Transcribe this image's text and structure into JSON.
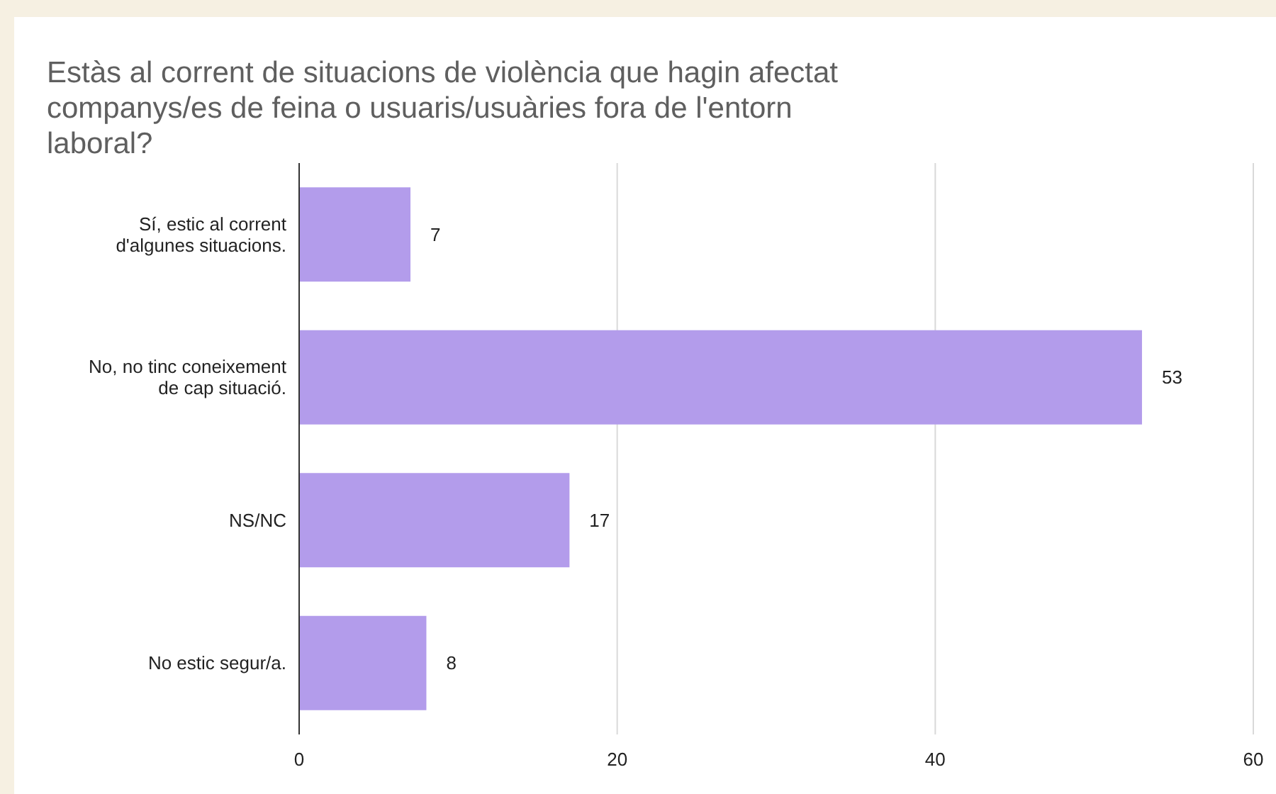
{
  "chart_data": {
    "type": "bar",
    "orientation": "horizontal",
    "title": "Estàs al corrent de situacions de violència que hagin afectat companys/es de feina o usuaris/usuàries fora de l'entorn laboral?",
    "categories": [
      "Sí, estic al corrent d'algunes situacions.",
      "No, no tinc coneixement de cap situació.",
      "NS/NC",
      "No estic segur/a."
    ],
    "values": [
      7,
      53,
      17,
      8
    ],
    "color": "#b39ceb",
    "data_labels": true,
    "xlim": [
      0,
      60
    ],
    "xticks": [
      0,
      20,
      40,
      60
    ],
    "grid": "x"
  }
}
